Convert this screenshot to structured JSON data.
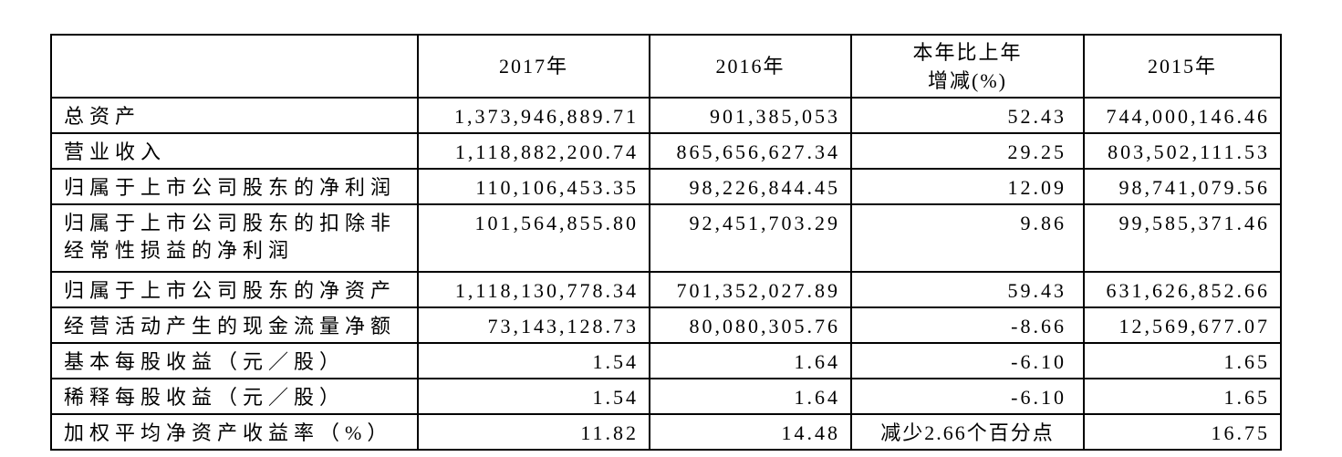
{
  "table": {
    "columns": [
      {
        "label": ""
      },
      {
        "label": "2017年"
      },
      {
        "label": "2016年"
      },
      {
        "label": "本年比上年\n增减(%)"
      },
      {
        "label": "2015年"
      }
    ],
    "rows": [
      {
        "label": "总资产",
        "y2017": "1,373,946,889.71",
        "y2016": "901,385,053",
        "change": "52.43",
        "y2015": "744,000,146.46"
      },
      {
        "label": "营业收入",
        "y2017": "1,118,882,200.74",
        "y2016": "865,656,627.34",
        "change": "29.25",
        "y2015": "803,502,111.53"
      },
      {
        "label": "归属于上市公司股东的净利润",
        "y2017": "110,106,453.35",
        "y2016": "98,226,844.45",
        "change": "12.09",
        "y2015": "98,741,079.56"
      },
      {
        "label": "归属于上市公司股东的扣除非经常性损益的净利润",
        "y2017": "101,564,855.80",
        "y2016": "92,451,703.29",
        "change": "9.86",
        "y2015": "99,585,371.46"
      },
      {
        "label": "归属于上市公司股东的净资产",
        "y2017": "1,118,130,778.34",
        "y2016": "701,352,027.89",
        "change": "59.43",
        "y2015": "631,626,852.66"
      },
      {
        "label": "经营活动产生的现金流量净额",
        "y2017": "73,143,128.73",
        "y2016": "80,080,305.76",
        "change": "-8.66",
        "y2015": "12,569,677.07"
      },
      {
        "label": "基本每股收益（元／股）",
        "y2017": "1.54",
        "y2016": "1.64",
        "change": "-6.10",
        "y2015": "1.65"
      },
      {
        "label": "稀释每股收益（元／股）",
        "y2017": "1.54",
        "y2016": "1.64",
        "change": "-6.10",
        "y2015": "1.65"
      },
      {
        "label": "加权平均净资产收益率（%）",
        "y2017": "11.82",
        "y2016": "14.48",
        "change": "减少2.66个百分点",
        "y2015": "16.75"
      }
    ],
    "colors": {
      "border": "#000000",
      "text": "#000000",
      "background": "#ffffff"
    }
  }
}
